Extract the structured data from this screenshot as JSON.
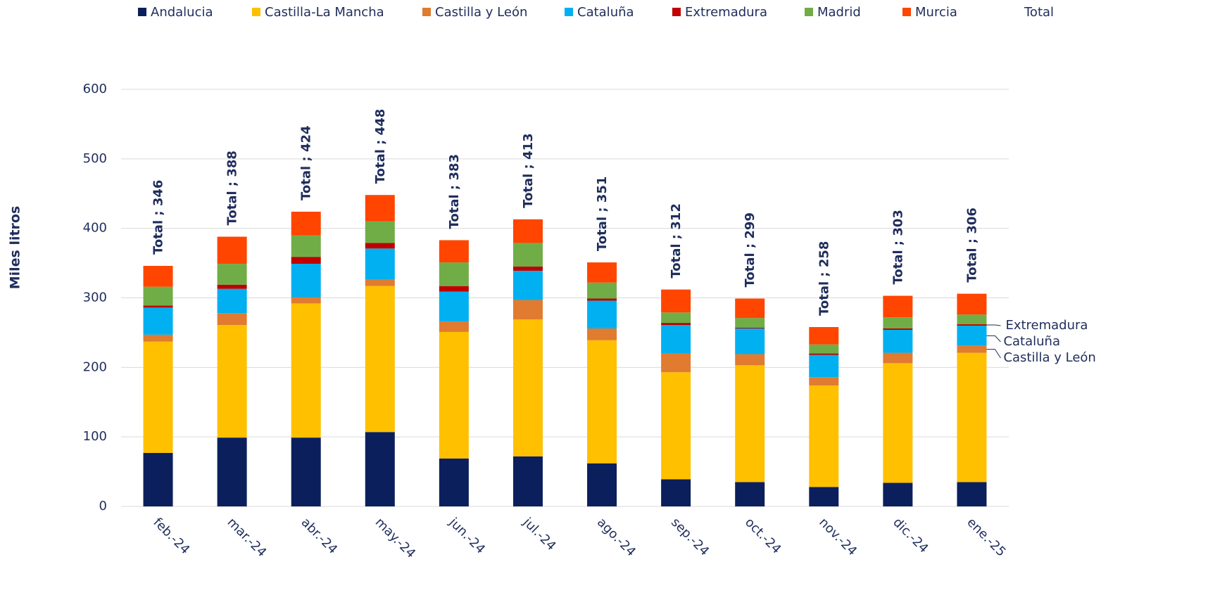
{
  "chart_data": {
    "type": "stacked_bar",
    "y_label": "Miles litros",
    "categories": [
      "feb.-24",
      "mar.-24",
      "abr.-24",
      "may.-24",
      "jun.-24",
      "jul.-24",
      "ago.-24",
      "sep.-24",
      "oct.-24",
      "nov.-24",
      "dic.-24",
      "ene.-25"
    ],
    "series": [
      {
        "name": "Andalucia",
        "color": "#0b1f5c",
        "values": [
          77,
          99,
          99,
          107,
          69,
          72,
          62,
          39,
          35,
          28,
          34,
          35
        ]
      },
      {
        "name": "Castilla-La Mancha",
        "color": "#ffc000",
        "values": [
          160,
          162,
          193,
          210,
          182,
          197,
          177,
          154,
          168,
          146,
          172,
          186
        ]
      },
      {
        "name": "Castilla y León",
        "color": "#e07b30",
        "values": [
          10,
          17,
          9,
          9,
          15,
          28,
          17,
          27,
          16,
          12,
          15,
          10
        ]
      },
      {
        "name": "Cataluña",
        "color": "#00b0f0",
        "values": [
          39,
          35,
          48,
          45,
          43,
          42,
          40,
          41,
          37,
          32,
          33,
          29
        ]
      },
      {
        "name": "Extremadura",
        "color": "#c00000",
        "values": [
          3,
          6,
          10,
          8,
          8,
          6,
          3,
          3,
          1,
          2,
          2,
          2
        ]
      },
      {
        "name": "Madrid",
        "color": "#70ad47",
        "values": [
          27,
          30,
          31,
          31,
          34,
          34,
          23,
          15,
          14,
          13,
          16,
          14
        ]
      },
      {
        "name": "Murcia",
        "color": "#ff4500",
        "values": [
          30,
          39,
          34,
          38,
          32,
          34,
          29,
          33,
          28,
          25,
          31,
          30
        ]
      },
      {
        "name": "Total",
        "total": true,
        "values": [
          346,
          388,
          424,
          448,
          383,
          413,
          351,
          312,
          299,
          258,
          303,
          306
        ],
        "value_labels": [
          "Total ; 346",
          "Total ; 388",
          "Total ; 424",
          "Total ; 448",
          "Total ; 383",
          "Total ; 413",
          "Total ; 351",
          "Total ; 312",
          "Total ; 299",
          "Total ; 258",
          "Total ; 303",
          "Total ; 306"
        ]
      }
    ],
    "annotations": [
      "Extremadura",
      "Cataluña",
      "Castilla y León"
    ],
    "ylim": [
      0,
      600
    ],
    "yticks": [
      0,
      100,
      200,
      300,
      400,
      500,
      600
    ],
    "grid": true,
    "legend": "top"
  }
}
